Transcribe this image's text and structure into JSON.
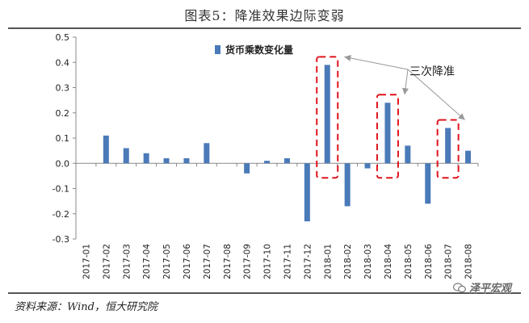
{
  "title": "图表5：降准效果边际变弱",
  "source": "资料来源：Wind，恒大研究院",
  "watermark": "泽平宏观",
  "colors": {
    "bar": "#4a7ab8",
    "highlight": "#e0141c",
    "axis": "#888888"
  },
  "chart_data": {
    "type": "bar",
    "categories": [
      "2017-01",
      "2017-02",
      "2017-03",
      "2017-04",
      "2017-05",
      "2017-06",
      "2017-07",
      "2017-08",
      "2017-09",
      "2017-10",
      "2017-11",
      "2017-12",
      "2018-01",
      "2018-02",
      "2018-03",
      "2018-04",
      "2018-05",
      "2018-06",
      "2018-07",
      "2018-08"
    ],
    "series": [
      {
        "name": "货币乘数变化量",
        "values": [
          0.0,
          0.11,
          0.06,
          0.04,
          0.02,
          0.02,
          0.08,
          0.0,
          -0.04,
          0.01,
          0.02,
          -0.23,
          0.39,
          -0.17,
          -0.02,
          0.24,
          0.07,
          -0.16,
          0.14,
          0.05
        ]
      }
    ],
    "ylim": [
      -0.3,
      0.5
    ],
    "yticks": [
      "0.5",
      "0.4",
      "0.3",
      "0.2",
      "0.1",
      "0.0",
      "-0.1",
      "-0.2",
      "-0.3"
    ],
    "ytick_values": [
      0.5,
      0.4,
      0.3,
      0.2,
      0.1,
      0.0,
      -0.1,
      -0.2,
      -0.3
    ],
    "legend": "top-center",
    "grid": false,
    "annotation": {
      "text": "三次降准",
      "highlighted": [
        "2018-01",
        "2018-04",
        "2018-07"
      ]
    }
  }
}
